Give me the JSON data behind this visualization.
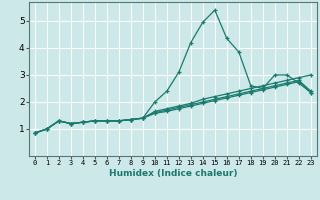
{
  "title": "",
  "xlabel": "Humidex (Indice chaleur)",
  "ylabel": "",
  "bg_color": "#cce8e8",
  "grid_color": "#ffffff",
  "line_color": "#1a7a6e",
  "xlim": [
    -0.5,
    23.5
  ],
  "ylim": [
    0,
    5.7
  ],
  "xticks": [
    0,
    1,
    2,
    3,
    4,
    5,
    6,
    7,
    8,
    9,
    10,
    11,
    12,
    13,
    14,
    15,
    16,
    17,
    18,
    19,
    20,
    21,
    22,
    23
  ],
  "yticks": [
    1,
    2,
    3,
    4,
    5
  ],
  "lines": [
    {
      "x": [
        0,
        1,
        2,
        3,
        4,
        5,
        6,
        7,
        8,
        9,
        10,
        11,
        12,
        13,
        14,
        15,
        16,
        17,
        18,
        19,
        20,
        21,
        22,
        23
      ],
      "y": [
        0.85,
        1.0,
        1.3,
        1.2,
        1.25,
        1.3,
        1.3,
        1.3,
        1.35,
        1.4,
        2.0,
        2.4,
        3.1,
        4.2,
        4.95,
        5.4,
        4.35,
        3.85,
        2.6,
        2.5,
        3.0,
        3.0,
        2.7,
        2.35
      ]
    },
    {
      "x": [
        0,
        1,
        2,
        3,
        4,
        5,
        6,
        7,
        8,
        9,
        10,
        11,
        12,
        13,
        14,
        15,
        16,
        17,
        18,
        19,
        20,
        21,
        22,
        23
      ],
      "y": [
        0.85,
        1.0,
        1.3,
        1.2,
        1.25,
        1.3,
        1.3,
        1.3,
        1.35,
        1.4,
        1.65,
        1.75,
        1.85,
        1.95,
        2.1,
        2.2,
        2.3,
        2.4,
        2.5,
        2.6,
        2.7,
        2.8,
        2.9,
        3.0
      ]
    },
    {
      "x": [
        0,
        1,
        2,
        3,
        4,
        5,
        6,
        7,
        8,
        9,
        10,
        11,
        12,
        13,
        14,
        15,
        16,
        17,
        18,
        19,
        20,
        21,
        22,
        23
      ],
      "y": [
        0.85,
        1.0,
        1.3,
        1.2,
        1.25,
        1.3,
        1.3,
        1.3,
        1.35,
        1.4,
        1.6,
        1.7,
        1.8,
        1.9,
        2.0,
        2.1,
        2.2,
        2.3,
        2.4,
        2.5,
        2.6,
        2.7,
        2.8,
        2.4
      ]
    },
    {
      "x": [
        0,
        1,
        2,
        3,
        4,
        5,
        6,
        7,
        8,
        9,
        10,
        11,
        12,
        13,
        14,
        15,
        16,
        17,
        18,
        19,
        20,
        21,
        22,
        23
      ],
      "y": [
        0.85,
        1.0,
        1.3,
        1.2,
        1.25,
        1.3,
        1.3,
        1.3,
        1.35,
        1.4,
        1.58,
        1.65,
        1.75,
        1.85,
        1.95,
        2.05,
        2.15,
        2.25,
        2.35,
        2.45,
        2.55,
        2.65,
        2.75,
        2.35
      ]
    }
  ]
}
